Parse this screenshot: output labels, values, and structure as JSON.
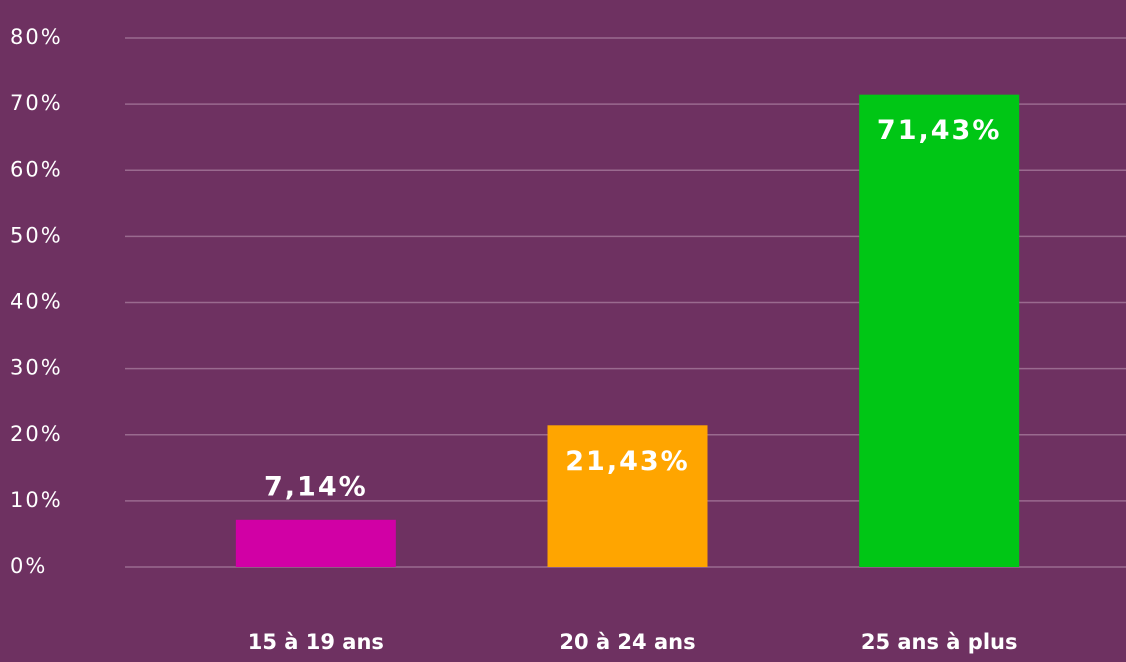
{
  "chart_data": {
    "type": "bar",
    "categories": [
      "15 à 19 ans",
      "20 à 24 ans",
      "25 ans à plus"
    ],
    "values": [
      7.14,
      21.43,
      71.43
    ],
    "value_labels": [
      "7,14%",
      "21,43%",
      "71,43%"
    ],
    "colors": [
      "#d100a5",
      "#ffa500",
      "#00c615"
    ],
    "ylim": [
      0,
      80
    ],
    "yticks": [
      {
        "value": 0,
        "label": "0%"
      },
      {
        "value": 10,
        "label": "10%"
      },
      {
        "value": 20,
        "label": "20%"
      },
      {
        "value": 30,
        "label": "30%"
      },
      {
        "value": 40,
        "label": "40%"
      },
      {
        "value": 50,
        "label": "50%"
      },
      {
        "value": 60,
        "label": "60%"
      },
      {
        "value": 70,
        "label": "70%"
      },
      {
        "value": 80,
        "label": "80%"
      }
    ],
    "grid": true
  }
}
